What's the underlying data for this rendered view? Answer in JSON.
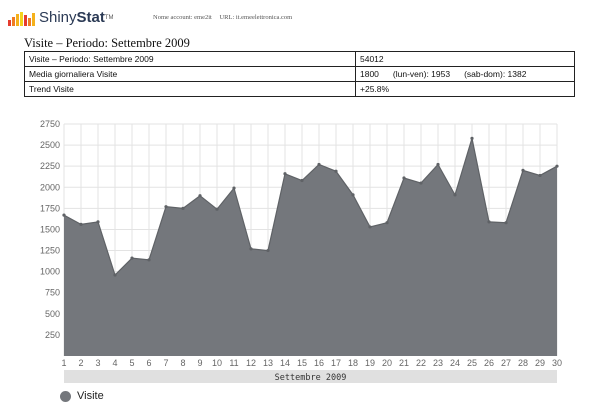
{
  "header": {
    "logo_text_a": "Shiny",
    "logo_text_b": "Stat",
    "logo_tm": "TM",
    "account": "Nome account: eme2it",
    "url": "URL: it.emeelettronica.com"
  },
  "page_title": "Visite – Periodo: Settembre 2009",
  "summary": {
    "rows": [
      {
        "label": "Visite – Periodo: Settembre 2009",
        "value": "54012"
      },
      {
        "label": "Media giornaliera Visite",
        "value_a": "1800",
        "value_b": "(lun-ven): 1953",
        "value_c": "(sab-dom): 1382"
      },
      {
        "label": "Trend Visite",
        "value": "+25.8%"
      }
    ]
  },
  "chart_data": {
    "type": "area",
    "title": "",
    "xlabel": "Settembre 2009",
    "ylabel": "",
    "x": [
      1,
      2,
      3,
      4,
      5,
      6,
      7,
      8,
      9,
      10,
      11,
      12,
      13,
      14,
      15,
      16,
      17,
      18,
      19,
      20,
      21,
      22,
      23,
      24,
      25,
      26,
      27,
      28,
      29,
      30
    ],
    "series": [
      {
        "name": "Visite",
        "values": [
          1670,
          1560,
          1590,
          960,
          1160,
          1140,
          1770,
          1750,
          1900,
          1740,
          1990,
          1270,
          1250,
          2160,
          2080,
          2270,
          2190,
          1910,
          1530,
          1580,
          2110,
          2050,
          2270,
          1910,
          2580,
          1590,
          1580,
          2200,
          2140,
          2250
        ]
      }
    ],
    "ylim": [
      0,
      2750
    ],
    "yticks": [
      250,
      500,
      750,
      1000,
      1250,
      1500,
      1750,
      2000,
      2250,
      2500,
      2750
    ],
    "grid": true,
    "legend_position": "bottom-left",
    "colors": {
      "fill": "#74777c",
      "line": "#5f6266",
      "grid": "#e3e3e3",
      "axis_band": "#e0e0e0"
    }
  },
  "legend": {
    "label": "Visite"
  }
}
